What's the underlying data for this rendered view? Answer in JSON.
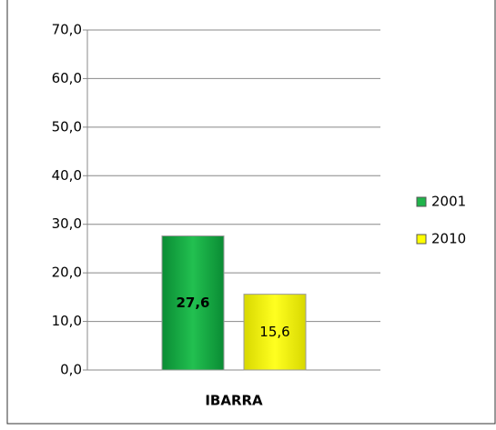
{
  "chart_data": {
    "type": "bar",
    "categories": [
      "IBARRA"
    ],
    "series": [
      {
        "name": "2001",
        "color": "#1fb44a",
        "values": [
          27.6
        ],
        "value_labels": [
          "27,6"
        ]
      },
      {
        "name": "2010",
        "color": "#ffff00",
        "values": [
          15.6
        ],
        "value_labels": [
          "15,6"
        ]
      }
    ],
    "ylim": [
      0,
      70
    ],
    "yticks": [
      {
        "value": 0,
        "label": "0,0"
      },
      {
        "value": 10,
        "label": "10,0"
      },
      {
        "value": 20,
        "label": "20,0"
      },
      {
        "value": 30,
        "label": "30,0"
      },
      {
        "value": 40,
        "label": "40,0"
      },
      {
        "value": 50,
        "label": "50,0"
      },
      {
        "value": 60,
        "label": "60,0"
      },
      {
        "value": 70,
        "label": "70,0"
      }
    ],
    "grid": true,
    "legend": "right"
  }
}
